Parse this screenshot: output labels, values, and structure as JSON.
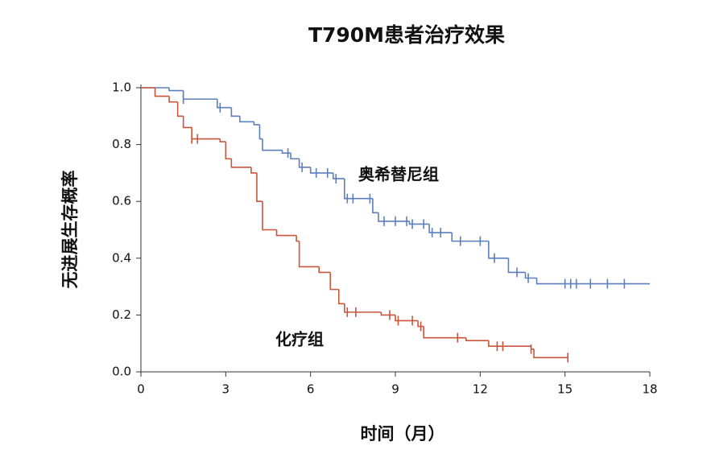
{
  "chart_data": {
    "type": "step",
    "title": "T790M患者治疗效果",
    "x_label": "时间（月）",
    "y_label": "无进展生存概率",
    "xlim": [
      0,
      18
    ],
    "xticks": [
      0,
      3,
      6,
      9,
      12,
      15,
      18
    ],
    "ylim": [
      0,
      1
    ],
    "yticks": [
      {
        "value": 0,
        "label": "0.0"
      },
      0.2,
      0.4,
      0.6,
      0.8,
      {
        "value": 1,
        "label": "1.0"
      }
    ],
    "series": [
      {
        "name": "奥希替尼组",
        "color": "#5b7fbf",
        "x": [
          0,
          1.0,
          1.5,
          2.7,
          3.2,
          3.5,
          4.0,
          4.2,
          4.3,
          5.0,
          5.3,
          5.6,
          6.0,
          6.8,
          7.2,
          8.2,
          8.4,
          9.5,
          10.2,
          11.0,
          12.3,
          13.0,
          13.6,
          14.0
        ],
        "values": [
          1.0,
          0.99,
          0.96,
          0.93,
          0.9,
          0.88,
          0.87,
          0.82,
          0.78,
          0.77,
          0.75,
          0.72,
          0.7,
          0.68,
          0.61,
          0.56,
          0.53,
          0.52,
          0.49,
          0.46,
          0.4,
          0.35,
          0.33,
          0.31
        ],
        "end_x": 18,
        "censored": [
          1.5,
          2.8,
          5.2,
          5.7,
          6.2,
          6.6,
          6.9,
          7.3,
          7.5,
          8.1,
          8.6,
          9.0,
          9.4,
          9.6,
          10.0,
          10.3,
          10.6,
          11.3,
          12.0,
          12.5,
          13.3,
          13.7,
          15.0,
          15.2,
          15.4,
          15.9,
          16.5,
          17.1
        ]
      },
      {
        "name": "化疗组",
        "color": "#c9563c",
        "x": [
          0,
          0.5,
          1.0,
          1.3,
          1.5,
          1.8,
          2.8,
          3.0,
          3.2,
          3.9,
          4.1,
          4.3,
          4.8,
          5.5,
          5.6,
          6.3,
          6.7,
          7.0,
          7.2,
          8.5,
          9.0,
          9.8,
          10.0,
          11.5,
          12.3,
          13.8,
          13.9
        ],
        "values": [
          1.0,
          0.97,
          0.95,
          0.9,
          0.86,
          0.82,
          0.81,
          0.75,
          0.72,
          0.7,
          0.6,
          0.5,
          0.48,
          0.46,
          0.37,
          0.35,
          0.29,
          0.24,
          0.21,
          0.2,
          0.18,
          0.16,
          0.12,
          0.11,
          0.09,
          0.08,
          0.05
        ],
        "end_x": 15.1,
        "censored": [
          1.8,
          2.0,
          7.3,
          7.6,
          8.8,
          9.1,
          9.6,
          9.9,
          11.2,
          12.6,
          12.8,
          13.8,
          15.1
        ]
      }
    ]
  }
}
